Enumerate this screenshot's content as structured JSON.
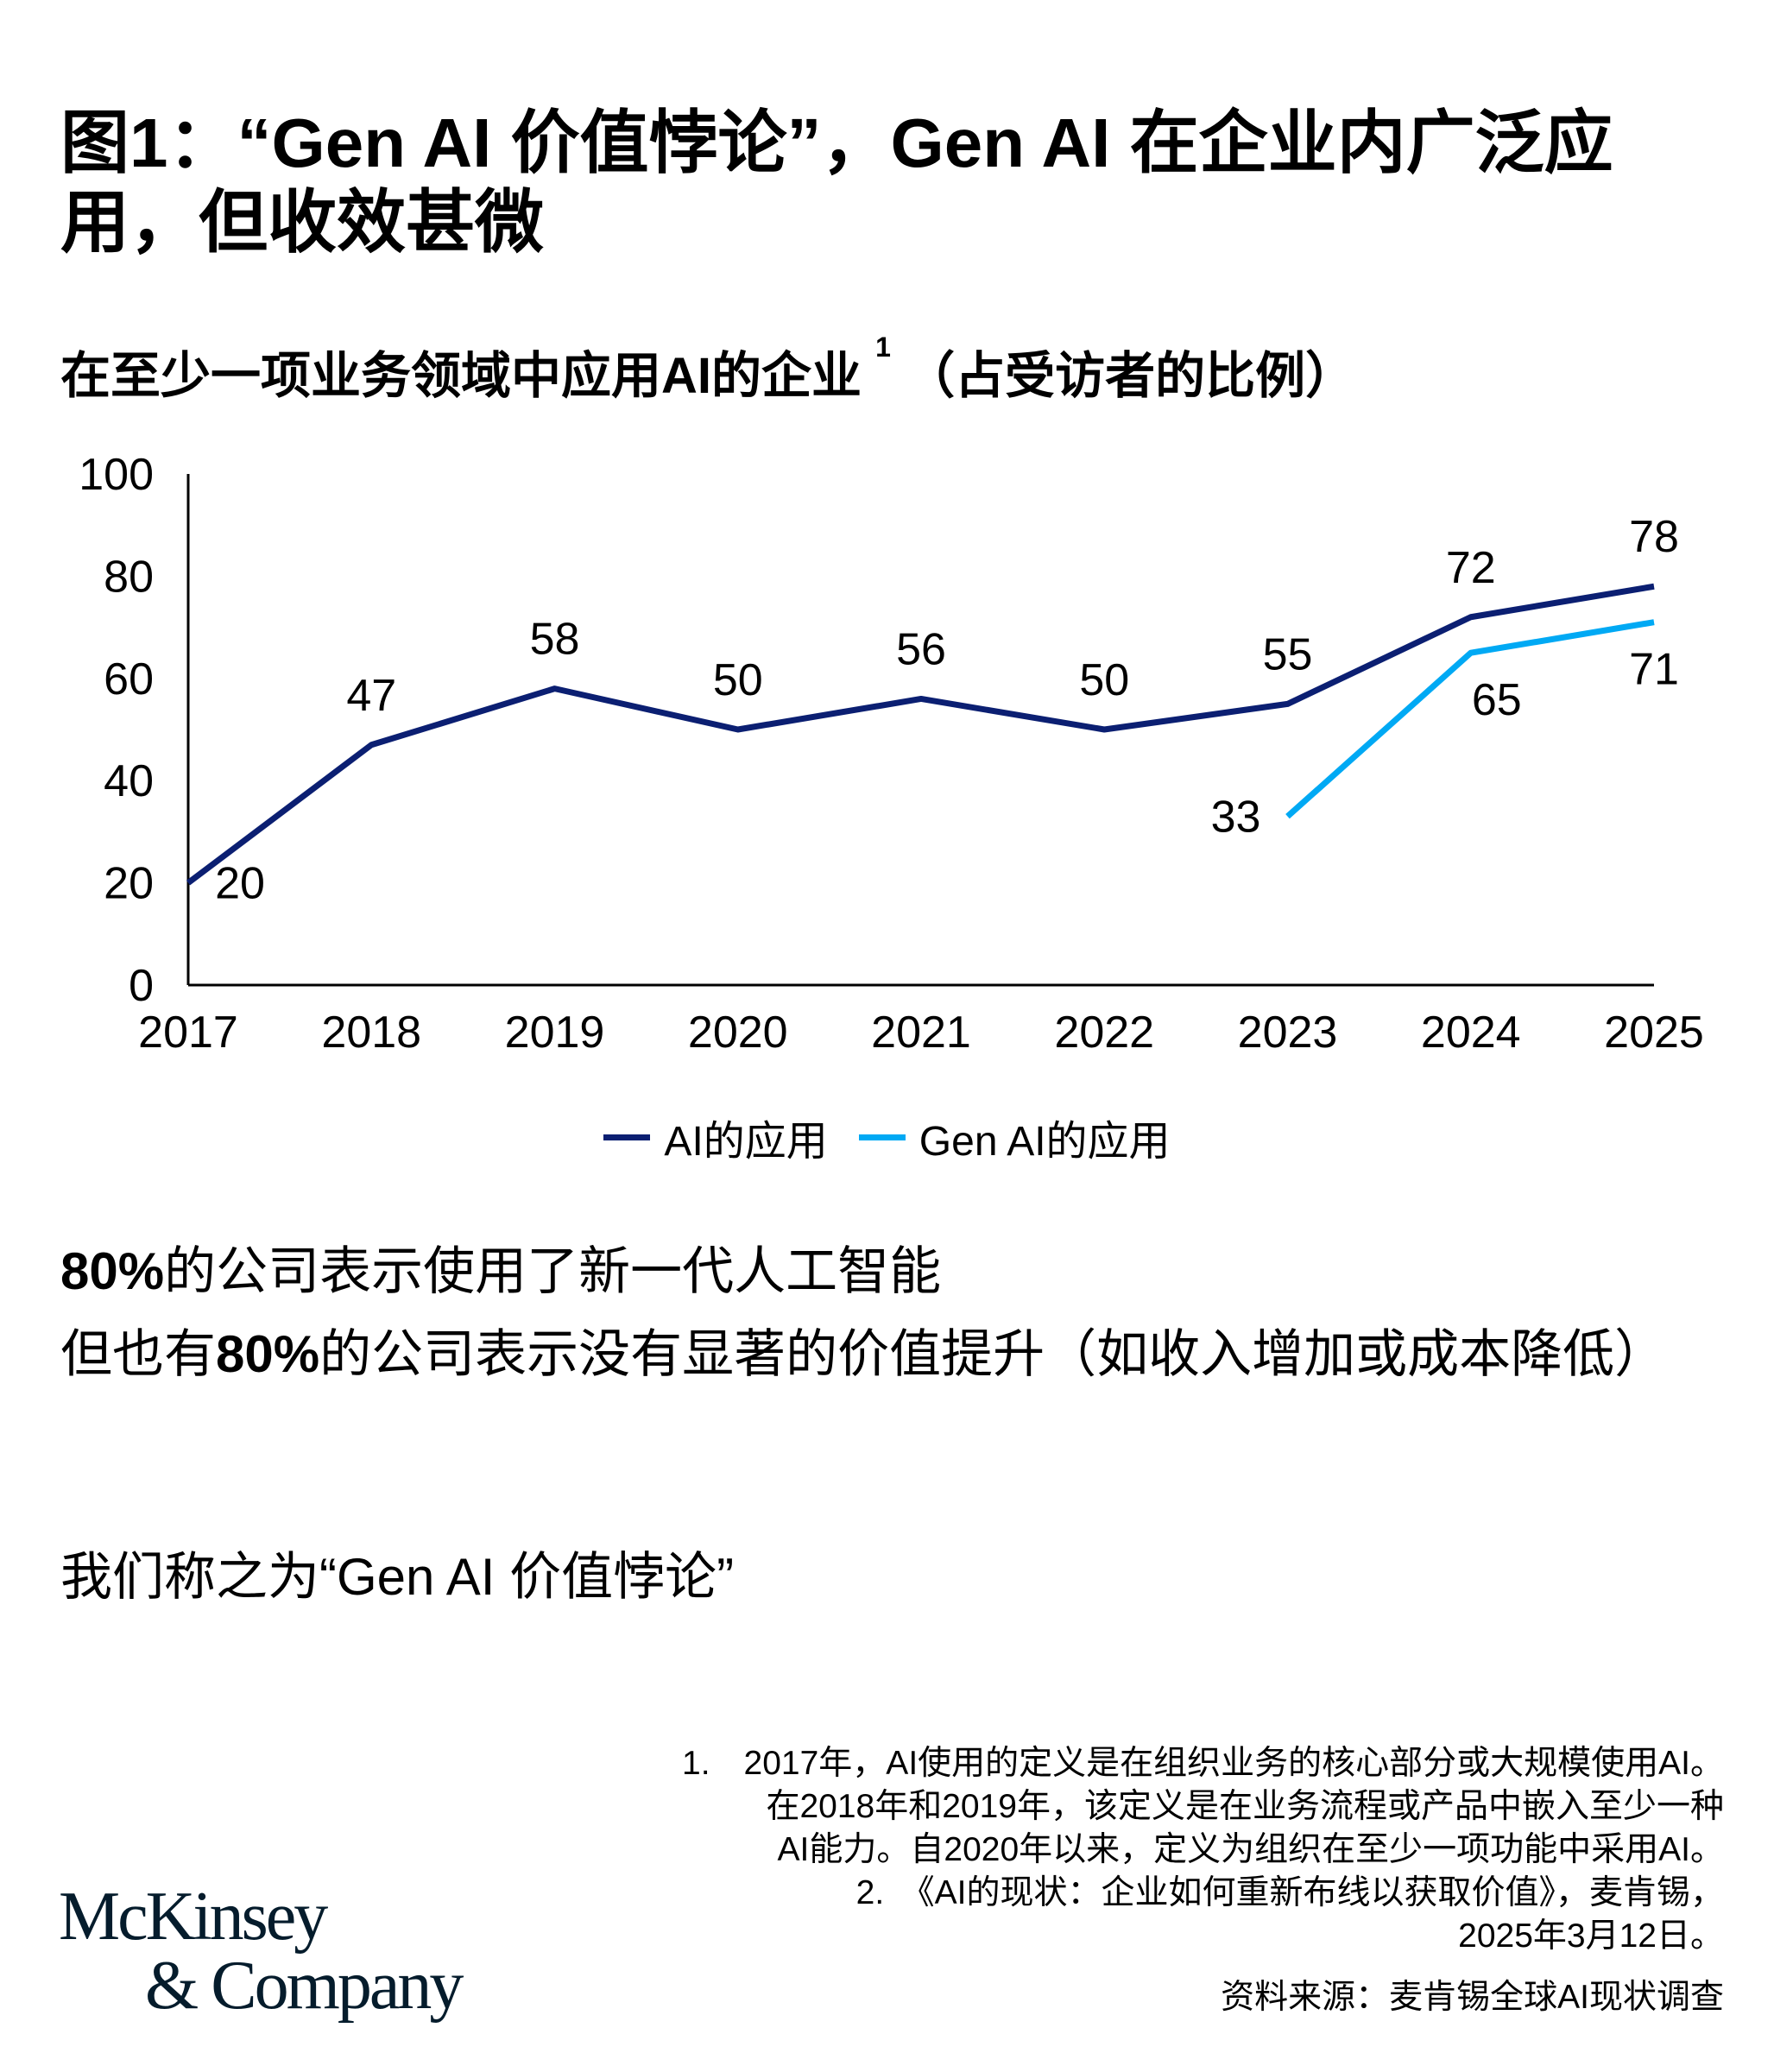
{
  "title": "图1：“Gen AI 价值悖论”，Gen AI 在企业内广泛应用，但收效甚微",
  "subtitle": "在至少一项业务领域中应用AI的企业",
  "subtitle_sup": "1",
  "subtitle_tail": "（占受访者的比例）",
  "chart_data": {
    "type": "line",
    "title": "在至少一项业务领域中应用AI的企业（占受访者的比例）",
    "x": [
      "2017",
      "2018",
      "2019",
      "2020",
      "2021",
      "2022",
      "2023",
      "2024",
      "2025"
    ],
    "ylim": [
      0,
      100
    ],
    "yticks": [
      "0",
      "20",
      "40",
      "60",
      "80",
      "100"
    ],
    "legend_position": "bottom-center",
    "series": [
      {
        "name": "AI的应用",
        "color": "#0b1f72",
        "values": [
          20,
          47,
          58,
          50,
          56,
          50,
          55,
          72,
          78
        ]
      },
      {
        "name": "Gen AI的应用",
        "color": "#00a9f4",
        "values": [
          null,
          null,
          null,
          null,
          null,
          null,
          33,
          65,
          71
        ]
      }
    ]
  },
  "body": {
    "line1_bold": "80%",
    "line1_rest": "的公司表示使用了新一代人工智能",
    "line2_pre": "但也有",
    "line2_bold": "80%",
    "line2_rest": "的公司表示没有显著的价值提升（如收入增加或成本降低）",
    "line3": "我们称之为“Gen AI 价值悖论”"
  },
  "footnotes": [
    "1.　2017年，AI使用的定义是在组织业务的核心部分或大规模使用AI。",
    "在2018年和2019年，该定义是在业务流程或产品中嵌入至少一种",
    "AI能力。自2020年以来，定义为组织在至少一项功能中采用AI。",
    "2.　《AI的现状：企业如何重新布线以获取价值》，麦肯锡，",
    "2025年3月12日。"
  ],
  "source": "资料来源：麦肯锡全球AI现状调查",
  "logo": {
    "line1": "McKinsey",
    "line2": "& Company"
  }
}
